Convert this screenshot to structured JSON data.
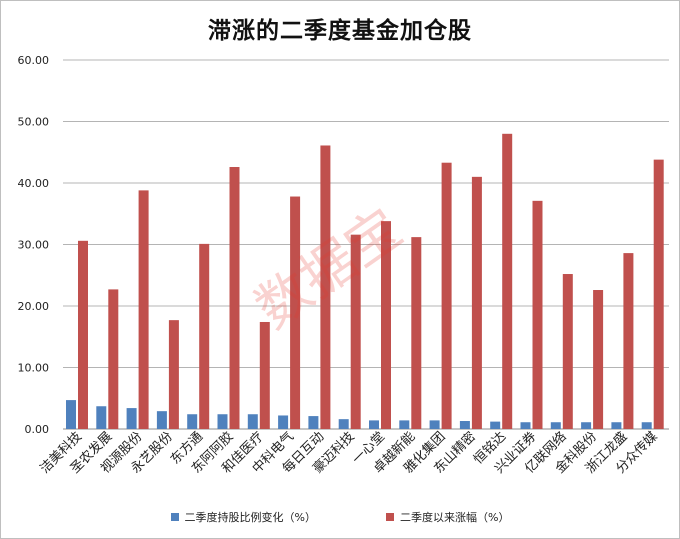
{
  "watermark": "数据宝",
  "colors": {
    "series1": "#4f81bd",
    "series2": "#c0504d",
    "grid": "#b4b4b4",
    "axis_text": "#222222"
  },
  "chart_data": {
    "type": "bar",
    "title": "滞涨的二季度基金加仓股",
    "xlabel": "",
    "ylabel": "",
    "ylim": [
      0,
      60
    ],
    "yticks": [
      "0.00",
      "10.00",
      "20.00",
      "30.00",
      "40.00",
      "50.00",
      "60.00"
    ],
    "grid": true,
    "legend_position": "bottom",
    "categories": [
      "洁美科技",
      "圣农发展",
      "视源股份",
      "永艺股份",
      "东方通",
      "东阿阿胶",
      "和佳医疗",
      "中科电气",
      "每日互动",
      "豪迈科技",
      "一心堂",
      "卓越新能",
      "雅化集团",
      "东山精密",
      "恒铭达",
      "兴业证券",
      "亿联网络",
      "金科股份",
      "浙江龙盛",
      "分众传媒"
    ],
    "series": [
      {
        "name": "二季度持股比例变化（%）",
        "values": [
          4.7,
          3.7,
          3.4,
          2.9,
          2.4,
          2.4,
          2.4,
          2.2,
          2.1,
          1.6,
          1.4,
          1.4,
          1.4,
          1.3,
          1.2,
          1.1,
          1.1,
          1.1,
          1.1,
          1.1
        ]
      },
      {
        "name": "二季度以来涨幅（%）",
        "values": [
          30.6,
          22.7,
          38.8,
          17.7,
          30.1,
          42.6,
          17.4,
          37.8,
          46.1,
          31.6,
          33.8,
          31.2,
          43.3,
          41.0,
          48.0,
          37.1,
          25.2,
          22.6,
          28.6,
          43.8
        ]
      }
    ]
  }
}
